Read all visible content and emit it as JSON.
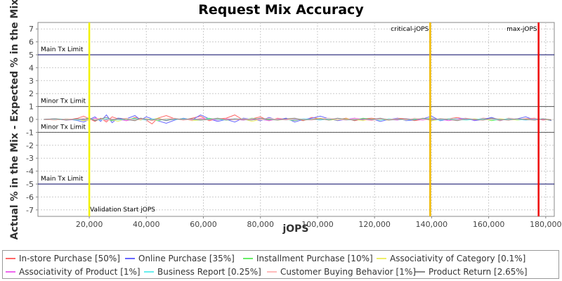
{
  "chart_data": {
    "type": "line",
    "title": "Request Mix Accuracy",
    "xlabel": "jOPS",
    "ylabel": "Actual % in the Mix - Expected % in the Mix",
    "xlim": [
      2000,
      183000
    ],
    "ylim": [
      -7.5,
      7.5
    ],
    "xticks": [
      20000,
      40000,
      60000,
      80000,
      100000,
      120000,
      140000,
      160000,
      180000
    ],
    "xtick_labels": [
      "20,000",
      "40,000",
      "60,000",
      "80,000",
      "100,000",
      "120,000",
      "140,000",
      "160,000",
      "180,000"
    ],
    "yticks": [
      -7,
      -6,
      -5,
      -4,
      -3,
      -2,
      -1,
      0,
      1,
      2,
      3,
      4,
      5,
      6,
      7
    ],
    "grid": true,
    "legend_position": "bottom",
    "horizontal_lines": [
      {
        "y": 5,
        "label": "Main Tx Limit",
        "color": "#000060",
        "label_side": "above"
      },
      {
        "y": 1,
        "label": "Minor Tx Limit",
        "color": "#555555",
        "label_side": "above"
      },
      {
        "y": -1,
        "label": "Minor Tx Limit",
        "color": "#555555",
        "label_side": "above"
      },
      {
        "y": -5,
        "label": "Main Tx Limit",
        "color": "#000060",
        "label_side": "above"
      }
    ],
    "vertical_lines": [
      {
        "x": 20000,
        "label": "Validation Start jOPS",
        "color": "#f2f200",
        "label_pos": "bottom"
      },
      {
        "x": 139500,
        "label": "critical-jOPS",
        "color": "#f0b800",
        "label_pos": "top"
      },
      {
        "x": 177500,
        "label": "max-jOPS",
        "color": "#ee0000",
        "label_pos": "top"
      }
    ],
    "x": [
      4000,
      8000,
      12000,
      16000,
      18000,
      20000,
      22000,
      24000,
      26000,
      28000,
      30000,
      33000,
      36000,
      38000,
      40000,
      42000,
      44000,
      47000,
      50000,
      53000,
      56000,
      59000,
      62000,
      65000,
      68000,
      71000,
      74000,
      77000,
      80000,
      83000,
      86000,
      89000,
      92000,
      95000,
      98000,
      101000,
      104000,
      107000,
      110000,
      113000,
      116000,
      119000,
      122000,
      125000,
      128000,
      131000,
      134000,
      137000,
      140000,
      143000,
      146000,
      149000,
      152000,
      155000,
      158000,
      161000,
      164000,
      167000,
      170000,
      173000,
      176000,
      179000,
      182000
    ],
    "series": [
      {
        "name": "In-store Purchase [50%]",
        "color": "#ff6666",
        "values": [
          0.0,
          0.05,
          -0.05,
          0.1,
          0.25,
          0.05,
          -0.15,
          0.1,
          -0.2,
          0.2,
          0.05,
          -0.1,
          0.15,
          0.05,
          -0.05,
          -0.35,
          0.1,
          0.3,
          0.05,
          -0.05,
          0.1,
          0.25,
          -0.1,
          0.05,
          0.1,
          0.35,
          -0.05,
          0.05,
          0.2,
          -0.1,
          0.1,
          0.0,
          0.05,
          -0.1,
          0.15,
          0.05,
          0.0,
          -0.05,
          0.1,
          -0.1,
          0.05,
          0.1,
          0.0,
          -0.05,
          0.1,
          0.05,
          -0.1,
          0.0,
          0.1,
          -0.05,
          0.05,
          0.15,
          0.0,
          -0.05,
          0.1,
          0.05,
          -0.1,
          0.1,
          0.0,
          0.05,
          0.1,
          -0.05,
          0.0
        ]
      },
      {
        "name": "Online Purchase [35%]",
        "color": "#6666ff",
        "values": [
          0.0,
          -0.05,
          0.05,
          -0.1,
          -0.2,
          0.0,
          0.2,
          -0.15,
          0.35,
          -0.25,
          0.1,
          0.05,
          0.3,
          -0.05,
          0.2,
          0.05,
          -0.1,
          -0.3,
          -0.05,
          0.1,
          -0.05,
          0.35,
          0.05,
          -0.15,
          0.0,
          -0.2,
          0.1,
          0.0,
          -0.1,
          0.15,
          -0.05,
          0.1,
          -0.2,
          0.0,
          0.1,
          0.25,
          0.05,
          -0.1,
          0.0,
          0.1,
          -0.05,
          0.05,
          -0.15,
          0.0,
          0.1,
          -0.1,
          -0.05,
          0.05,
          0.25,
          -0.1,
          0.0,
          0.05,
          0.1,
          -0.1,
          0.0,
          0.15,
          -0.05,
          0.0,
          0.05,
          0.2,
          -0.05,
          0.05,
          -0.1
        ]
      },
      {
        "name": "Installment Purchase [10%]",
        "color": "#66ee66",
        "values": [
          0.0,
          0.05,
          0.0,
          -0.05,
          0.05,
          0.1,
          -0.05,
          0.05,
          0.0,
          -0.1,
          0.05,
          0.0,
          0.1,
          -0.05,
          0.05,
          0.0,
          -0.1,
          0.05,
          0.0,
          0.05,
          -0.05,
          0.0,
          0.1,
          -0.05,
          0.05,
          0.0,
          -0.05,
          0.1,
          0.0,
          -0.05,
          0.05,
          0.0,
          -0.1,
          0.05,
          0.0,
          0.05,
          -0.05,
          0.0,
          0.05,
          -0.05,
          0.1,
          0.0,
          -0.05,
          0.05,
          0.0,
          -0.05,
          0.05,
          0.0,
          0.1,
          -0.05,
          0.0,
          0.05,
          -0.05,
          0.0,
          0.05,
          -0.1,
          0.0,
          0.05,
          -0.05,
          0.0,
          0.05,
          0.0,
          -0.05
        ]
      },
      {
        "name": "Associativity of Category [0.1%]",
        "color": "#eeee66",
        "values": [
          0.0,
          -0.05,
          0.05,
          0.0,
          -0.1,
          -0.05,
          0.1,
          0.05,
          -0.05,
          0.0,
          -0.15,
          0.05,
          0.0,
          -0.05,
          0.05,
          0.0,
          0.1,
          -0.05,
          0.0,
          0.05,
          -0.1,
          -0.05,
          0.0,
          0.05,
          -0.05,
          0.0,
          0.05,
          -0.15,
          0.0,
          0.05,
          -0.05,
          0.0,
          0.05,
          -0.05,
          0.0,
          0.1,
          0.0,
          -0.05,
          0.05,
          0.0,
          -0.1,
          0.05,
          0.0,
          -0.05,
          0.05,
          0.0,
          -0.05,
          0.05,
          -0.1,
          0.0,
          0.05,
          0.0,
          -0.05,
          0.05,
          0.0,
          -0.05,
          0.05,
          0.0,
          -0.05,
          0.0,
          0.05,
          0.0,
          -0.05
        ]
      },
      {
        "name": "Associativity of Product [1%]",
        "color": "#ee66ee",
        "values": [
          0.0,
          0.05,
          -0.05,
          0.0,
          0.05,
          -0.05,
          0.1,
          0.0,
          -0.05,
          0.05,
          0.0,
          -0.1,
          0.05,
          0.0,
          -0.05,
          0.05,
          0.0,
          -0.05,
          0.05,
          0.0,
          -0.05,
          0.1,
          0.0,
          -0.05,
          0.05,
          0.0,
          -0.05,
          0.05,
          0.0,
          -0.1,
          0.05,
          0.0,
          -0.05,
          0.05,
          0.0,
          -0.05,
          0.05,
          0.0,
          -0.05,
          0.1,
          0.0,
          -0.05,
          0.05,
          0.0,
          -0.05,
          0.05,
          0.0,
          -0.05,
          0.05,
          0.0,
          -0.1,
          0.05,
          0.0,
          -0.05,
          0.05,
          0.0,
          -0.05,
          0.05,
          0.0,
          -0.05,
          0.05,
          0.0,
          0.0
        ]
      },
      {
        "name": "Business Report [0.25%]",
        "color": "#66eeee",
        "values": [
          0.0,
          0.0,
          0.05,
          -0.05,
          0.0,
          0.05,
          0.0,
          -0.05,
          0.05,
          0.0,
          -0.05,
          0.0,
          0.05,
          0.0,
          -0.05,
          0.05,
          0.0,
          -0.05,
          0.0,
          0.05,
          0.0,
          -0.05,
          0.05,
          0.0,
          -0.05,
          0.0,
          0.05,
          0.0,
          -0.05,
          0.05,
          0.0,
          -0.05,
          0.0,
          0.05,
          0.0,
          -0.05,
          0.05,
          0.0,
          -0.05,
          0.0,
          0.05,
          0.0,
          -0.05,
          0.05,
          0.0,
          -0.05,
          0.0,
          0.05,
          0.0,
          -0.05,
          0.05,
          0.0,
          -0.05,
          0.0,
          0.05,
          0.0,
          -0.05,
          0.05,
          0.0,
          -0.05,
          0.0,
          0.05,
          0.0
        ]
      },
      {
        "name": "Customer Buying Behavior [1%]",
        "color": "#ffbbbb",
        "values": [
          0.0,
          -0.05,
          0.05,
          0.0,
          0.1,
          -0.05,
          0.0,
          0.05,
          -0.1,
          0.05,
          0.0,
          0.1,
          -0.05,
          0.0,
          0.05,
          -0.1,
          0.0,
          0.05,
          0.1,
          -0.05,
          0.0,
          0.05,
          -0.05,
          0.1,
          0.0,
          -0.05,
          0.05,
          0.0,
          -0.05,
          0.1,
          0.0,
          -0.05,
          0.05,
          0.0,
          -0.05,
          0.05,
          0.1,
          0.0,
          -0.05,
          0.05,
          0.0,
          -0.1,
          0.05,
          0.0,
          0.05,
          -0.05,
          0.1,
          0.0,
          -0.05,
          0.05,
          0.0,
          -0.05,
          0.1,
          0.0,
          -0.05,
          0.05,
          0.0,
          -0.05,
          0.05,
          0.0,
          -0.05,
          0.05,
          0.0
        ]
      },
      {
        "name": "Product Return [2.65%]",
        "color": "#888888",
        "values": [
          0.0,
          0.05,
          -0.05,
          0.05,
          -0.05,
          0.1,
          -0.1,
          0.05,
          0.15,
          -0.05,
          0.05,
          0.0,
          -0.1,
          0.1,
          0.0,
          -0.05,
          0.05,
          -0.1,
          0.05,
          0.0,
          0.05,
          -0.05,
          0.0,
          0.1,
          -0.05,
          0.05,
          0.0,
          -0.05,
          0.1,
          0.0,
          -0.05,
          0.05,
          0.1,
          -0.05,
          0.0,
          0.05,
          -0.05,
          0.1,
          0.0,
          -0.05,
          0.05,
          0.0,
          0.1,
          -0.05,
          0.0,
          0.05,
          -0.05,
          0.1,
          -0.05,
          0.05,
          0.0,
          -0.1,
          0.05,
          0.0,
          -0.05,
          0.1,
          0.0,
          -0.05,
          0.05,
          0.0,
          -0.05,
          0.05,
          -0.05
        ]
      }
    ]
  }
}
